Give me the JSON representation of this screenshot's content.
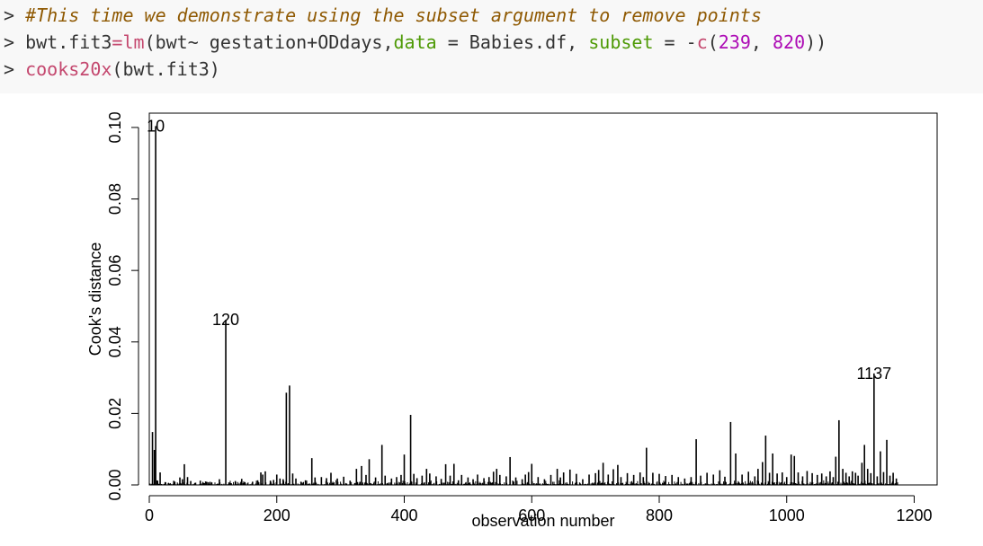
{
  "code": {
    "line1": {
      "prompt": "> ",
      "comment": "#This time we demonstrate using the subset argument to remove points"
    },
    "line2": {
      "prompt": "> ",
      "a": "bwt.fit3",
      "assign": "=",
      "fn": "lm",
      "b": "(bwt~ gestation+ODdays,",
      "arg1": "data",
      "c": " = Babies.df, ",
      "arg2": "subset",
      "d": " = -",
      "fn2": "c",
      "e": "(",
      "n1": "239",
      "f": ", ",
      "n2": "820",
      "g": "))"
    },
    "line3": {
      "prompt": "> ",
      "fn": "cooks20x",
      "rest": "(bwt.fit3)"
    }
  },
  "colors": {
    "comment": "#8f5902",
    "function": "#c4476e",
    "argument": "#4e9a06",
    "number": "#ad0bb5"
  },
  "chart_data": {
    "type": "bar",
    "style": "histogram-spikes",
    "xlabel": "observation number",
    "ylabel": "Cook's distance",
    "xlim": [
      0,
      1236
    ],
    "ylim": [
      0,
      0.104
    ],
    "xticks": [
      0,
      200,
      400,
      600,
      800,
      1000,
      1200
    ],
    "yticks": [
      0.0,
      0.02,
      0.04,
      0.06,
      0.08,
      0.1
    ],
    "yticklabels": [
      "0.00",
      "0.02",
      "0.04",
      "0.06",
      "0.08",
      "0.10"
    ],
    "grid": false,
    "labeled_points": [
      {
        "label": "10",
        "x": 10,
        "y": 0.1004
      },
      {
        "label": "120",
        "x": 120,
        "y": 0.0462
      },
      {
        "label": "1137",
        "x": 1137,
        "y": 0.0312
      }
    ],
    "points": [
      [
        5,
        0.0148
      ],
      [
        8,
        0.0098
      ],
      [
        10,
        0.1004
      ],
      [
        13,
        0.0012
      ],
      [
        17,
        0.0035
      ],
      [
        25,
        0.0008
      ],
      [
        30,
        0.0005
      ],
      [
        40,
        0.0009
      ],
      [
        48,
        0.0021
      ],
      [
        52,
        0.0016
      ],
      [
        55,
        0.0058
      ],
      [
        60,
        0.0022
      ],
      [
        65,
        0.0011
      ],
      [
        72,
        0.0006
      ],
      [
        80,
        0.0012
      ],
      [
        90,
        0.0009
      ],
      [
        98,
        0.0007
      ],
      [
        110,
        0.0016
      ],
      [
        120,
        0.0462
      ],
      [
        125,
        0.0007
      ],
      [
        135,
        0.0011
      ],
      [
        145,
        0.0017
      ],
      [
        150,
        0.0008
      ],
      [
        162,
        0.0009
      ],
      [
        170,
        0.0013
      ],
      [
        175,
        0.0035
      ],
      [
        178,
        0.0029
      ],
      [
        182,
        0.0038
      ],
      [
        190,
        0.0012
      ],
      [
        195,
        0.0014
      ],
      [
        200,
        0.0029
      ],
      [
        205,
        0.0018
      ],
      [
        210,
        0.0016
      ],
      [
        215,
        0.0258
      ],
      [
        220,
        0.0278
      ],
      [
        225,
        0.0032
      ],
      [
        230,
        0.0018
      ],
      [
        238,
        0.0009
      ],
      [
        245,
        0.0013
      ],
      [
        255,
        0.0075
      ],
      [
        260,
        0.0021
      ],
      [
        270,
        0.0022
      ],
      [
        278,
        0.0019
      ],
      [
        285,
        0.0034
      ],
      [
        295,
        0.0018
      ],
      [
        305,
        0.0023
      ],
      [
        315,
        0.0012
      ],
      [
        325,
        0.0045
      ],
      [
        333,
        0.0053
      ],
      [
        340,
        0.0028
      ],
      [
        345,
        0.0072
      ],
      [
        355,
        0.0021
      ],
      [
        365,
        0.0112
      ],
      [
        370,
        0.0026
      ],
      [
        380,
        0.0018
      ],
      [
        388,
        0.0022
      ],
      [
        395,
        0.0028
      ],
      [
        400,
        0.0085
      ],
      [
        410,
        0.0196
      ],
      [
        415,
        0.0031
      ],
      [
        420,
        0.0019
      ],
      [
        428,
        0.0026
      ],
      [
        435,
        0.0045
      ],
      [
        440,
        0.0032
      ],
      [
        450,
        0.0024
      ],
      [
        458,
        0.0017
      ],
      [
        465,
        0.0058
      ],
      [
        472,
        0.0026
      ],
      [
        478,
        0.0059
      ],
      [
        485,
        0.0013
      ],
      [
        490,
        0.0028
      ],
      [
        500,
        0.0021
      ],
      [
        508,
        0.0016
      ],
      [
        515,
        0.0029
      ],
      [
        525,
        0.0019
      ],
      [
        533,
        0.0022
      ],
      [
        540,
        0.0037
      ],
      [
        545,
        0.0045
      ],
      [
        550,
        0.0028
      ],
      [
        560,
        0.0024
      ],
      [
        566,
        0.0078
      ],
      [
        575,
        0.0021
      ],
      [
        585,
        0.0016
      ],
      [
        590,
        0.0029
      ],
      [
        595,
        0.0036
      ],
      [
        600,
        0.0059
      ],
      [
        610,
        0.0022
      ],
      [
        620,
        0.0016
      ],
      [
        630,
        0.0028
      ],
      [
        640,
        0.0045
      ],
      [
        645,
        0.0021
      ],
      [
        650,
        0.0035
      ],
      [
        660,
        0.0043
      ],
      [
        670,
        0.0031
      ],
      [
        680,
        0.0016
      ],
      [
        690,
        0.0029
      ],
      [
        700,
        0.0033
      ],
      [
        705,
        0.0042
      ],
      [
        712,
        0.0062
      ],
      [
        720,
        0.0029
      ],
      [
        728,
        0.0044
      ],
      [
        735,
        0.0056
      ],
      [
        740,
        0.0022
      ],
      [
        750,
        0.0033
      ],
      [
        760,
        0.0028
      ],
      [
        770,
        0.0035
      ],
      [
        775,
        0.0022
      ],
      [
        780,
        0.0104
      ],
      [
        790,
        0.0034
      ],
      [
        800,
        0.0031
      ],
      [
        810,
        0.0025
      ],
      [
        820,
        0.0028
      ],
      [
        830,
        0.0022
      ],
      [
        840,
        0.0018
      ],
      [
        850,
        0.0022
      ],
      [
        858,
        0.0128
      ],
      [
        865,
        0.0026
      ],
      [
        875,
        0.0034
      ],
      [
        885,
        0.0029
      ],
      [
        895,
        0.0041
      ],
      [
        903,
        0.0023
      ],
      [
        912,
        0.0176
      ],
      [
        920,
        0.0088
      ],
      [
        930,
        0.0029
      ],
      [
        940,
        0.0037
      ],
      [
        950,
        0.0024
      ],
      [
        955,
        0.0045
      ],
      [
        962,
        0.0064
      ],
      [
        967,
        0.0138
      ],
      [
        973,
        0.0034
      ],
      [
        978,
        0.0088
      ],
      [
        985,
        0.0032
      ],
      [
        993,
        0.0035
      ],
      [
        1000,
        0.0022
      ],
      [
        1007,
        0.0085
      ],
      [
        1012,
        0.0081
      ],
      [
        1018,
        0.0035
      ],
      [
        1025,
        0.0024
      ],
      [
        1032,
        0.0039
      ],
      [
        1040,
        0.0033
      ],
      [
        1048,
        0.0028
      ],
      [
        1055,
        0.0032
      ],
      [
        1062,
        0.0024
      ],
      [
        1068,
        0.0038
      ],
      [
        1073,
        0.0022
      ],
      [
        1077,
        0.0079
      ],
      [
        1082,
        0.0181
      ],
      [
        1088,
        0.0045
      ],
      [
        1093,
        0.0034
      ],
      [
        1098,
        0.0024
      ],
      [
        1103,
        0.0038
      ],
      [
        1108,
        0.0034
      ],
      [
        1112,
        0.0026
      ],
      [
        1118,
        0.0062
      ],
      [
        1122,
        0.0112
      ],
      [
        1127,
        0.0045
      ],
      [
        1132,
        0.0033
      ],
      [
        1137,
        0.0312
      ],
      [
        1142,
        0.0024
      ],
      [
        1147,
        0.0094
      ],
      [
        1152,
        0.0036
      ],
      [
        1157,
        0.0126
      ],
      [
        1162,
        0.0026
      ],
      [
        1167,
        0.0034
      ],
      [
        1172,
        0.0018
      ]
    ]
  }
}
